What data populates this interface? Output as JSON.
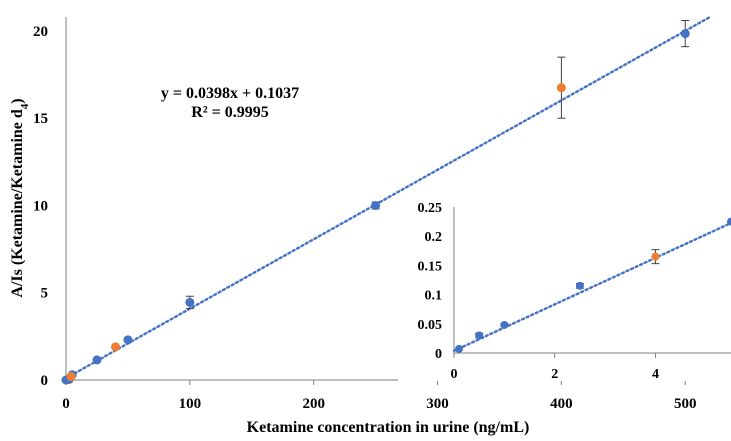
{
  "chart_data": {
    "type": "scatter",
    "main": {
      "xlabel": "Ketamine concentration in urine (ng/mL)",
      "ylabel_main": "A/Is (Ketamine/Ketamine d",
      "ylabel_sub": "4",
      "ylabel_close": ")",
      "xlim": [
        0,
        520
      ],
      "ylim": [
        0,
        20.8
      ],
      "xticks": [
        0,
        100,
        200,
        300,
        400,
        500
      ],
      "yticks": [
        0,
        5,
        10,
        15,
        20
      ],
      "grid": false,
      "series": [
        {
          "color": "#4472c4",
          "points": [
            {
              "x": 0,
              "y": 0.0,
              "err": 0
            },
            {
              "x": 0.5,
              "y": 0.008,
              "err": 0
            },
            {
              "x": 2.5,
              "y": 0.03,
              "err": 0
            },
            {
              "x": 5,
              "y": 0.3,
              "err": 0
            },
            {
              "x": 25,
              "y": 1.15,
              "err": 0
            },
            {
              "x": 50,
              "y": 2.3,
              "err": 0
            },
            {
              "x": 100,
              "y": 4.45,
              "err": 0.35
            },
            {
              "x": 250,
              "y": 10.0,
              "err": 0.2
            },
            {
              "x": 500,
              "y": 19.85,
              "err": 0.75
            }
          ]
        },
        {
          "color": "#ed7d31",
          "points": [
            {
              "x": 4,
              "y": 0.2,
              "err": 0
            },
            {
              "x": 40,
              "y": 1.9,
              "err": 0
            },
            {
              "x": 400,
              "y": 16.75,
              "err": 1.75
            }
          ]
        }
      ],
      "trendline": {
        "slope": 0.0398,
        "intercept": 0.1037,
        "color": "#4472c4",
        "style": "dotted"
      },
      "equation": "y = 0.0398x + 0.1037",
      "r_squared": "R² = 0.9995"
    },
    "inset": {
      "xlim": [
        0,
        5.5
      ],
      "ylim": [
        0,
        0.25
      ],
      "xticks": [
        0,
        2,
        4
      ],
      "yticks": [
        0,
        0.05,
        0.1,
        0.15,
        0.2,
        0.25
      ],
      "ytick_labels": [
        "0",
        "0.05",
        "0.1",
        "0.15",
        "0.2",
        "0.25"
      ],
      "series": [
        {
          "color": "#4472c4",
          "points": [
            {
              "x": 0.1,
              "y": 0.007,
              "err": 0
            },
            {
              "x": 0.5,
              "y": 0.03,
              "err": 0.004
            },
            {
              "x": 1,
              "y": 0.048,
              "err": 0.002
            },
            {
              "x": 2.5,
              "y": 0.115,
              "err": 0.004
            },
            {
              "x": 5.5,
              "y": 0.225,
              "err": 0
            }
          ]
        },
        {
          "color": "#ed7d31",
          "points": [
            {
              "x": 4,
              "y": 0.165,
              "err": 0.012
            }
          ]
        }
      ],
      "trendline": {
        "slope": 0.0398,
        "intercept": 0.0037,
        "color": "#4472c4",
        "style": "dotted"
      }
    }
  }
}
